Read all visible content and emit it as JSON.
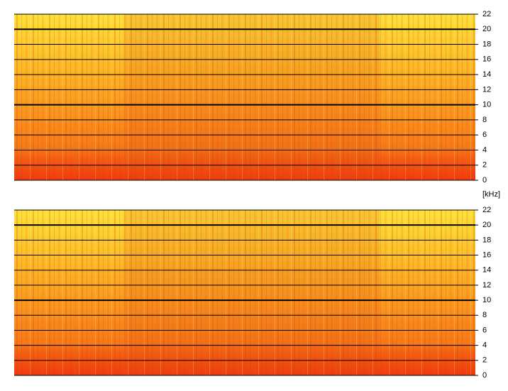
{
  "chart_data": [
    {
      "type": "spectrogram",
      "ylabel": "[kHz]",
      "ylim": [
        0,
        22
      ],
      "yticks": [
        0,
        2,
        4,
        6,
        8,
        10,
        12,
        14,
        16,
        18,
        20,
        22
      ],
      "grid": true
    },
    {
      "type": "spectrogram",
      "ylim": [
        0,
        22
      ],
      "yticks": [
        0,
        2,
        4,
        6,
        8,
        10,
        12,
        14,
        16,
        18,
        20,
        22
      ],
      "grid": true
    }
  ]
}
